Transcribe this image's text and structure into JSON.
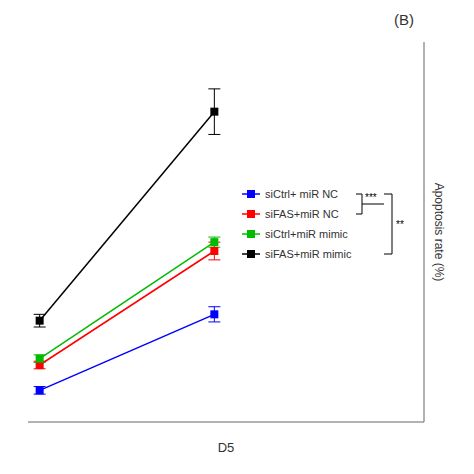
{
  "chart_data": {
    "type": "line",
    "title": "(B)",
    "x_label": "D5",
    "y_label": "Apoptosis rate (%)",
    "x": [
      -1.5,
      0
    ],
    "xlim": [
      -1.6,
      1.8
    ],
    "ylim": [
      0,
      30
    ],
    "tick_labels": false,
    "legend": "right",
    "series": [
      {
        "name": "siCtrl+ miR NC",
        "color": "#0000ff",
        "marker": "square",
        "values": [
          2.5,
          8.5
        ],
        "yerr": [
          0.3,
          0.6
        ]
      },
      {
        "name": "siFAS+miR NC",
        "color": "#ff0000",
        "marker": "square",
        "values": [
          4.5,
          13.5
        ],
        "yerr": [
          0.3,
          0.7
        ]
      },
      {
        "name": "siCtrl+miR mimic",
        "color": "#00bb00",
        "marker": "square",
        "values": [
          5.0,
          14.2
        ],
        "yerr": [
          0.3,
          0.4
        ]
      },
      {
        "name": "siFAS+miR mimic",
        "color": "#000000",
        "marker": "square",
        "values": [
          8.0,
          24.5
        ],
        "yerr": [
          0.5,
          1.8
        ]
      }
    ],
    "annotations": [
      "***",
      "**"
    ]
  }
}
